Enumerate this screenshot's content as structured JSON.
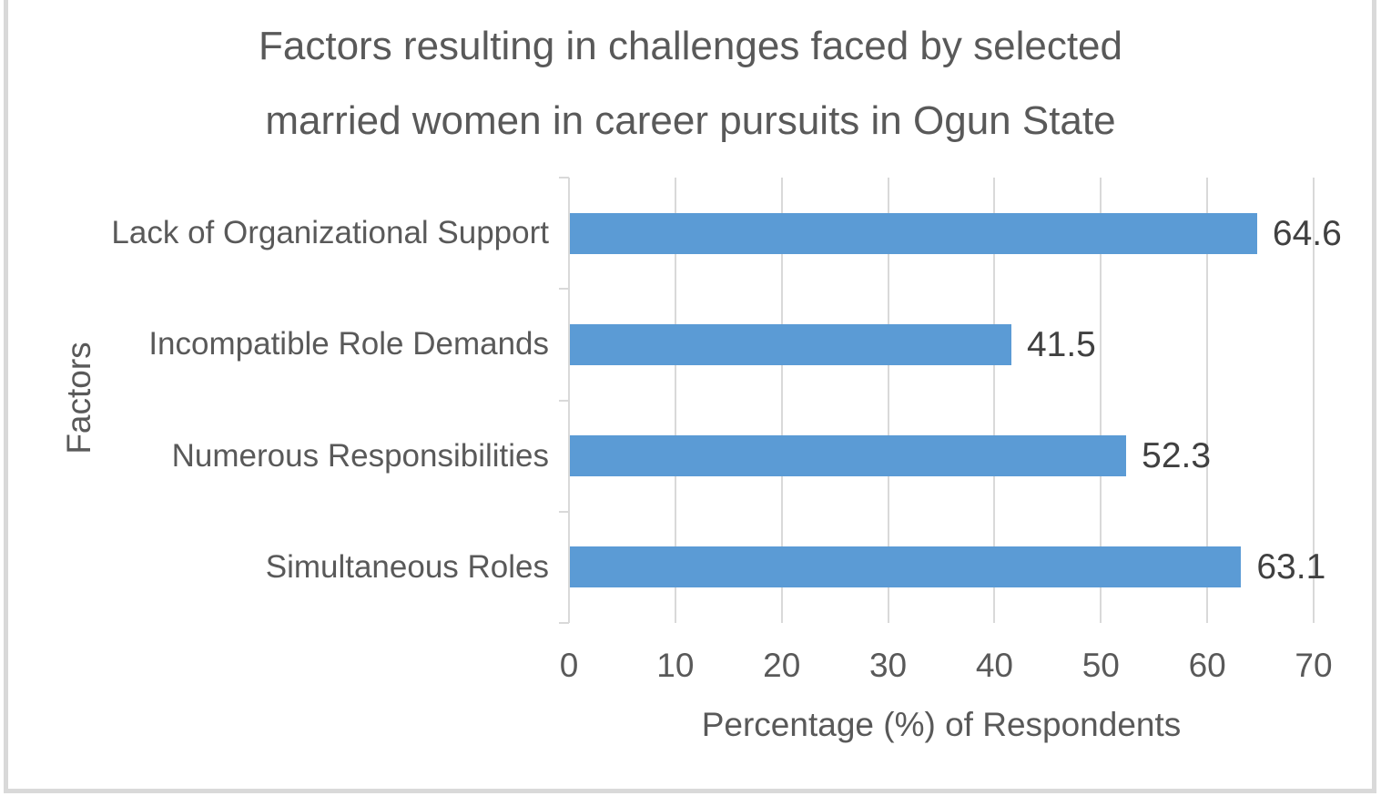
{
  "chart_data": {
    "type": "bar",
    "orientation": "horizontal",
    "title": "Factors resulting in challenges faced by selected married women in career pursuits in Ogun State",
    "title_lines": [
      "Factors resulting in challenges faced by selected",
      "married women in career pursuits in Ogun State"
    ],
    "categories": [
      "Lack of Organizational Support",
      "Incompatible Role Demands",
      "Numerous Responsibilities",
      "Simultaneous Roles"
    ],
    "values": [
      64.6,
      41.5,
      52.3,
      63.1
    ],
    "data_labels": [
      "64.6",
      "41.5",
      "52.3",
      "63.1"
    ],
    "xlabel": "Percentage (%) of Respondents",
    "ylabel": "Factors",
    "xlim": [
      0,
      70
    ],
    "xticks": [
      0,
      10,
      20,
      30,
      40,
      50,
      60,
      70
    ],
    "grid": "vertical",
    "legend": "none",
    "colors": {
      "bar": "#5B9BD5",
      "grid": "#D9D9D9",
      "text": "#595959",
      "data_label": "#404040",
      "border": "#D9D9D9",
      "background": "#FFFFFF"
    }
  }
}
